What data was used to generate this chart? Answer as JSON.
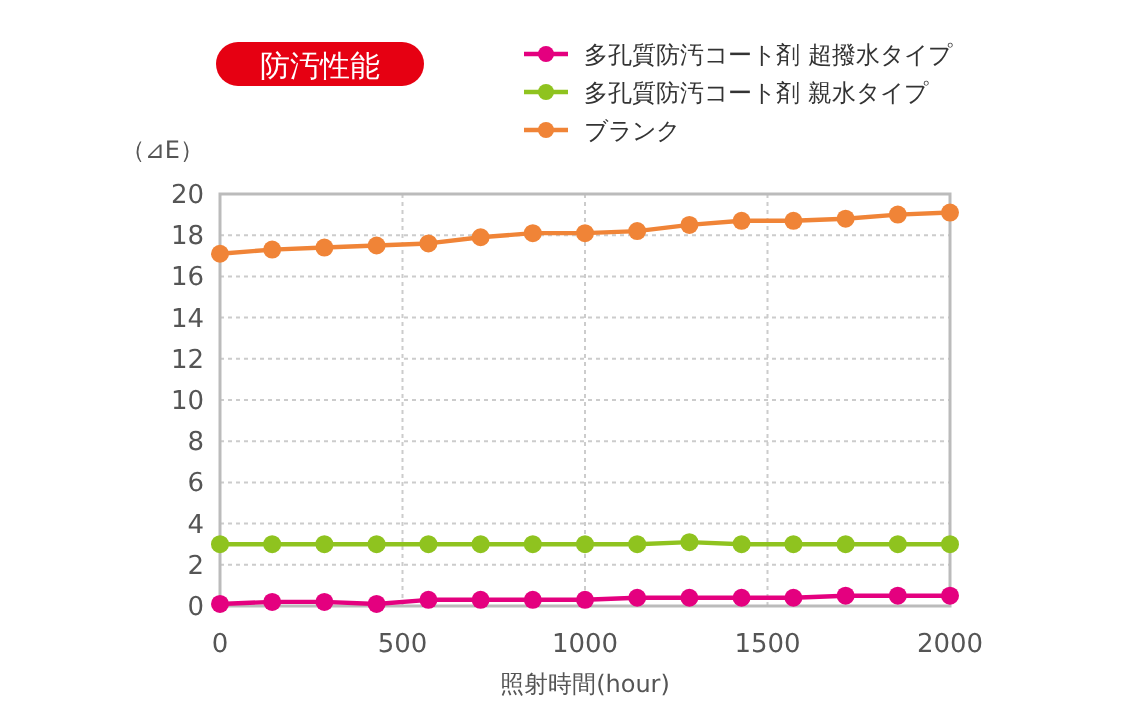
{
  "chart_data": {
    "type": "line",
    "title": "防汚性能",
    "xlabel": "照射時間(hour)",
    "ylabel": "（⊿E）",
    "x": [
      0,
      143,
      286,
      429,
      571,
      714,
      857,
      1000,
      1143,
      1286,
      1429,
      1571,
      1714,
      1857,
      2000
    ],
    "series": [
      {
        "name": "多孔質防汚コート剤 超撥水タイプ",
        "color": "#e4007f",
        "values": [
          0.1,
          0.2,
          0.2,
          0.1,
          0.3,
          0.3,
          0.3,
          0.3,
          0.4,
          0.4,
          0.4,
          0.4,
          0.5,
          0.5,
          0.5
        ]
      },
      {
        "name": "多孔質防汚コート剤 親水タイプ",
        "color": "#8fc31f",
        "values": [
          3.0,
          3.0,
          3.0,
          3.0,
          3.0,
          3.0,
          3.0,
          3.0,
          3.0,
          3.1,
          3.0,
          3.0,
          3.0,
          3.0,
          3.0
        ]
      },
      {
        "name": "ブランク",
        "color": "#f08437",
        "values": [
          17.1,
          17.3,
          17.4,
          17.5,
          17.6,
          17.9,
          18.1,
          18.1,
          18.2,
          18.5,
          18.7,
          18.7,
          18.8,
          19.0,
          19.1
        ]
      }
    ],
    "xlim": [
      0,
      2000
    ],
    "xticks": [
      0,
      500,
      1000,
      1500,
      2000
    ],
    "ylim": [
      0,
      20
    ],
    "yticks": [
      0,
      2,
      4,
      6,
      8,
      10,
      12,
      14,
      16,
      18,
      20
    ],
    "grid": true,
    "legend": "top right",
    "marker": "circle",
    "line_style": "solid"
  }
}
